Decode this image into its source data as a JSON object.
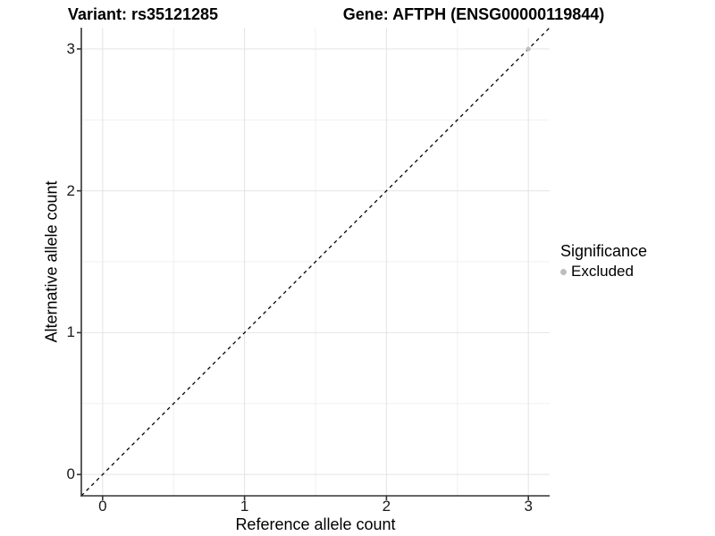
{
  "header": {
    "variant_title": "Variant: rs35121285",
    "gene_title": "Gene: AFTPH (ENSG00000119844)"
  },
  "chart_data": {
    "type": "scatter",
    "xlabel": "Reference allele count",
    "ylabel": "Alternative allele count",
    "xlim": [
      -0.15,
      3.15
    ],
    "ylim": [
      -0.15,
      3.15
    ],
    "xticks": [
      0,
      1,
      2,
      3
    ],
    "yticks": [
      0,
      1,
      2,
      3
    ],
    "xticks_minor": [
      0.5,
      1.5,
      2.5
    ],
    "yticks_minor": [
      0.5,
      1.5,
      2.5
    ],
    "grid": "major+minor",
    "identity_line": {
      "style": "dashed",
      "x": [
        -0.15,
        3.15
      ],
      "y": [
        -0.15,
        3.15
      ],
      "color": "#000000"
    },
    "series": [
      {
        "name": "Excluded",
        "color": "#bebebe",
        "points": [
          {
            "x": 3,
            "y": 3
          }
        ]
      }
    ],
    "legend": {
      "title": "Significance",
      "position": "right",
      "items": [
        {
          "label": "Excluded",
          "color": "#bebebe"
        }
      ]
    }
  },
  "colors": {
    "background": "#ffffff",
    "grid_major": "#e4e4e4",
    "grid_minor": "#f0f0f0",
    "axis_line": "#333333",
    "tick_mark": "#333333",
    "tick_text": "#1a1a1a",
    "identity_line": "#000000",
    "point": "#bebebe"
  }
}
